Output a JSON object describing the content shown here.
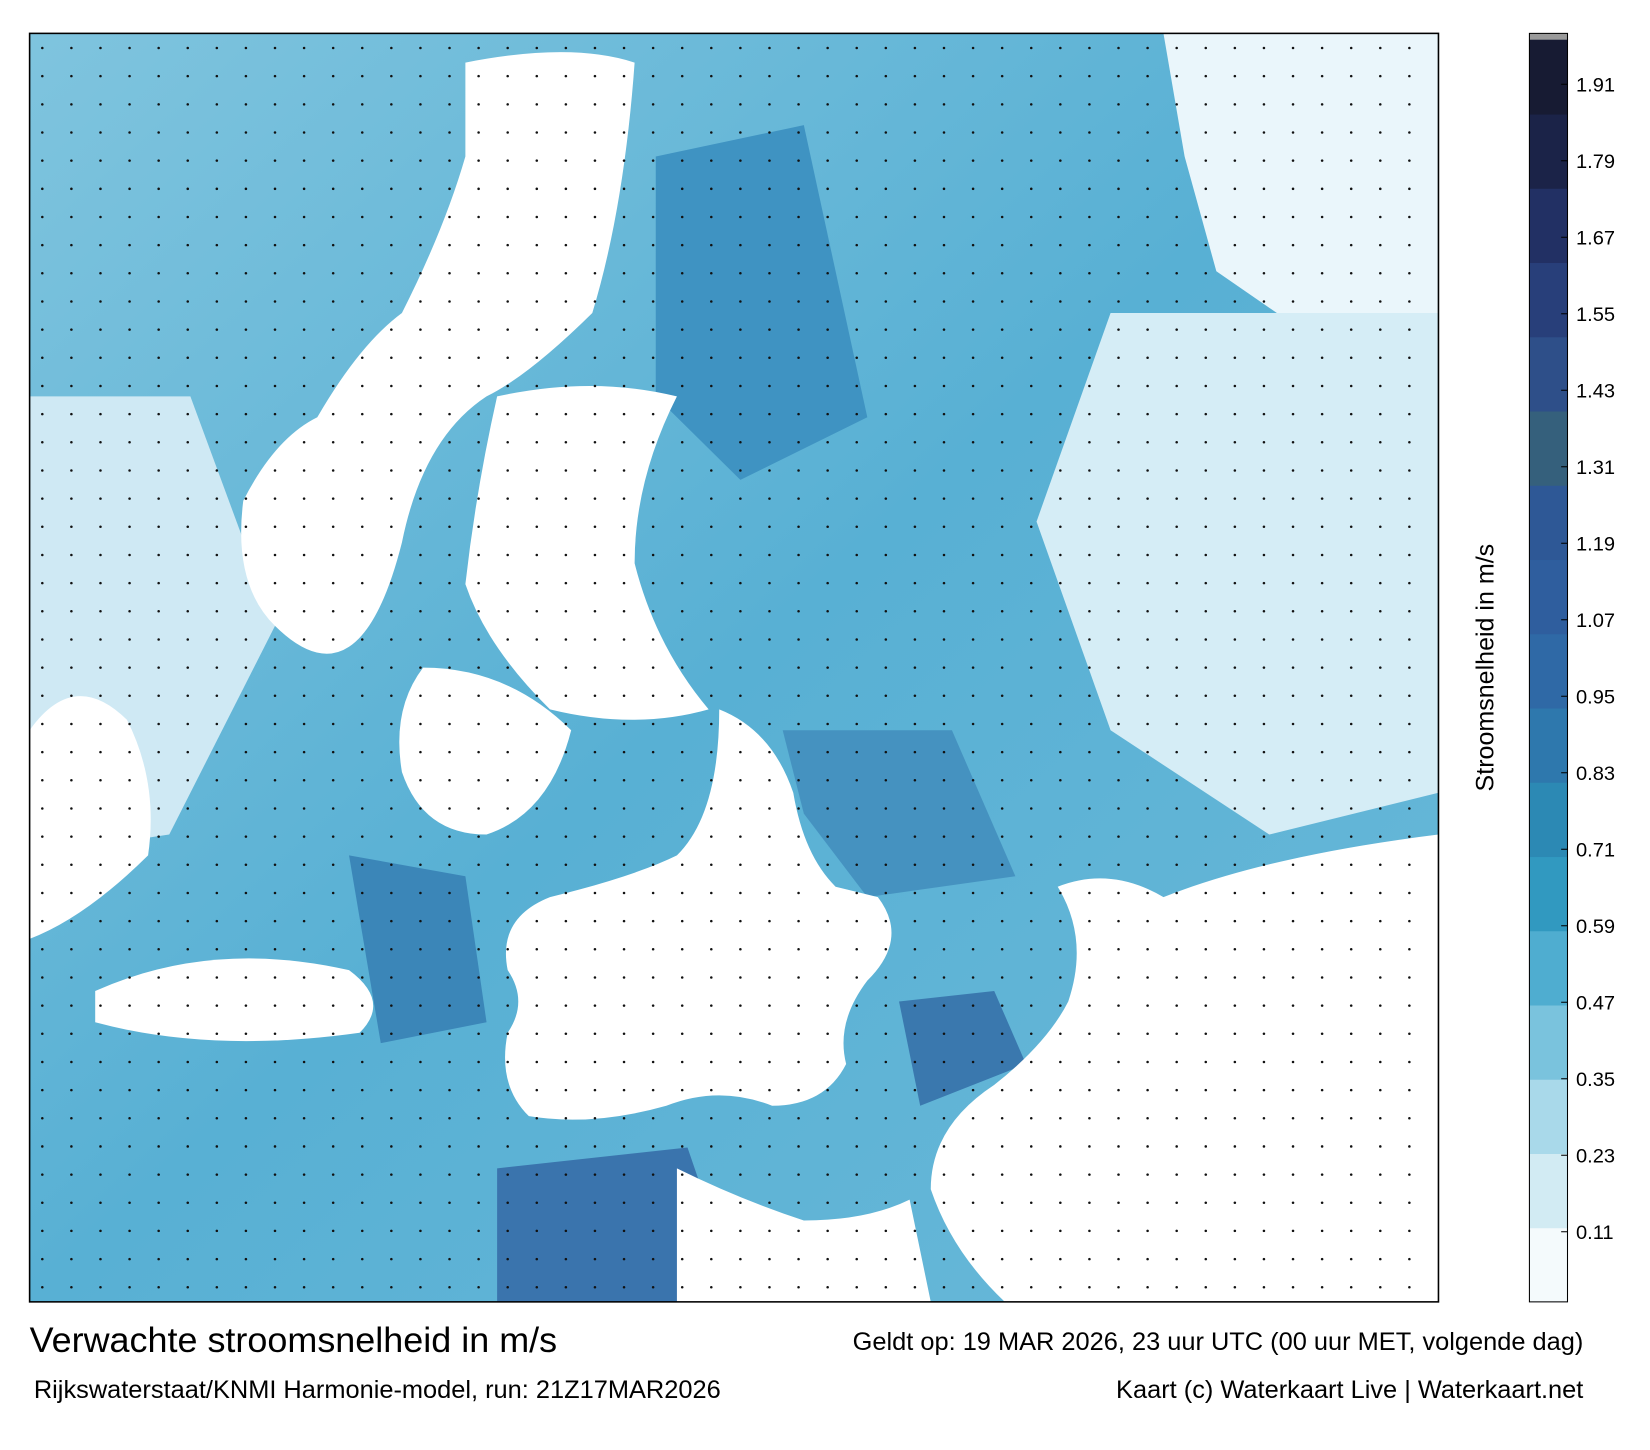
{
  "chart_data": {
    "type": "colormap",
    "title": "Verwachte stroomsnelheid in m/s",
    "valid_time": "Geldt op: 19 MAR 2026, 23 uur UTC (00 uur MET, volgende dag)",
    "source": "Rijkswaterstaat/KNMI Harmonie-model, run: 21Z17MAR2026",
    "credit": "Kaart (c) Waterkaart Live | Waterkaart.net",
    "colorbar_label": "Stroomsnelheid in m/s",
    "clim": [
      0,
      1.98
    ],
    "cticks": [
      0.11,
      0.23,
      0.35,
      0.47,
      0.59,
      0.71,
      0.83,
      0.95,
      1.07,
      1.19,
      1.31,
      1.43,
      1.55,
      1.67,
      1.79,
      1.91
    ],
    "colors": [
      "#f4fafc",
      "#d2ebf3",
      "#a9d9ea",
      "#7ac3dd",
      "#4fadd0",
      "#3199c0",
      "#2c89b4",
      "#2e78ad",
      "#2f69a6",
      "#2f5e9e",
      "#2e5896",
      "#35607c",
      "#2e4f89",
      "#283f7a",
      "#223064",
      "#1b2348",
      "#171b33"
    ],
    "overflow_color": "#9a9a9a"
  }
}
